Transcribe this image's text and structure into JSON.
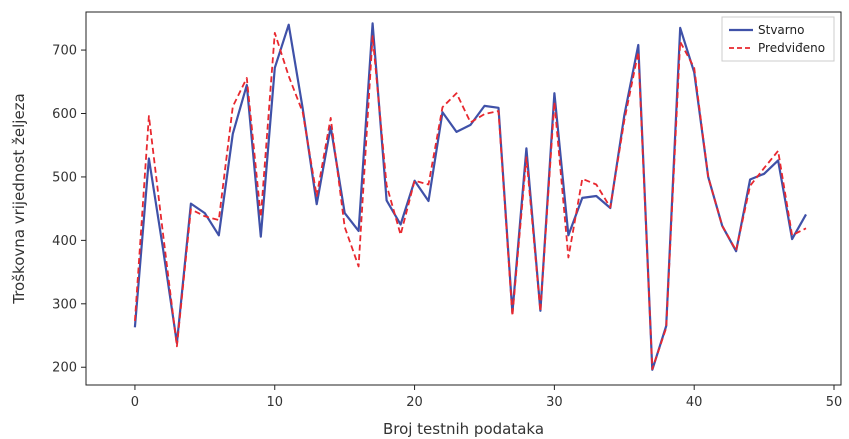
{
  "chart_data": {
    "type": "line",
    "xlabel": "Broj testnih podataka",
    "ylabel": "Troškovna vrijednost željeza",
    "xlim": [
      -3.5,
      50.5
    ],
    "ylim": [
      172,
      760
    ],
    "xticks": [
      0,
      10,
      20,
      30,
      40,
      50
    ],
    "yticks": [
      200,
      300,
      400,
      500,
      600,
      700
    ],
    "grid": false,
    "legend_position": "top-right",
    "series": [
      {
        "name": "Stvarno",
        "color": "#3f51a8",
        "dash": "solid",
        "x": [
          0,
          1,
          2,
          3,
          4,
          5,
          6,
          7,
          8,
          9,
          10,
          11,
          12,
          13,
          14,
          15,
          16,
          17,
          18,
          19,
          20,
          21,
          22,
          23,
          24,
          25,
          26,
          27,
          28,
          29,
          30,
          31,
          32,
          33,
          34,
          35,
          36,
          37,
          38,
          39,
          40,
          41,
          42,
          43,
          44,
          45,
          46,
          47,
          48
        ],
        "values": [
          263,
          529,
          388,
          238,
          458,
          443,
          408,
          568,
          645,
          406,
          672,
          740,
          608,
          457,
          579,
          443,
          415,
          742,
          463,
          425,
          494,
          462,
          602,
          571,
          582,
          612,
          609,
          286,
          545,
          289,
          632,
          408,
          467,
          470,
          451,
          597,
          708,
          196,
          265,
          735,
          665,
          500,
          423,
          383,
          496,
          505,
          526,
          402,
          441
        ]
      },
      {
        "name": "Predviđeno",
        "color": "#e8282f",
        "dash": "dashed",
        "x": [
          0,
          1,
          2,
          3,
          4,
          5,
          6,
          7,
          8,
          9,
          10,
          11,
          12,
          13,
          14,
          15,
          16,
          17,
          18,
          19,
          20,
          21,
          22,
          23,
          24,
          25,
          26,
          27,
          28,
          29,
          30,
          31,
          32,
          33,
          34,
          35,
          36,
          37,
          38,
          39,
          40,
          41,
          42,
          43,
          44,
          45,
          46,
          47,
          48
        ],
        "values": [
          273,
          596,
          412,
          233,
          449,
          438,
          432,
          611,
          656,
          437,
          727,
          659,
          602,
          470,
          593,
          421,
          359,
          722,
          487,
          409,
          494,
          488,
          610,
          632,
          586,
          599,
          604,
          281,
          531,
          288,
          618,
          373,
          497,
          488,
          452,
          589,
          697,
          197,
          262,
          713,
          672,
          500,
          423,
          384,
          486,
          514,
          541,
          408,
          419
        ]
      }
    ]
  }
}
